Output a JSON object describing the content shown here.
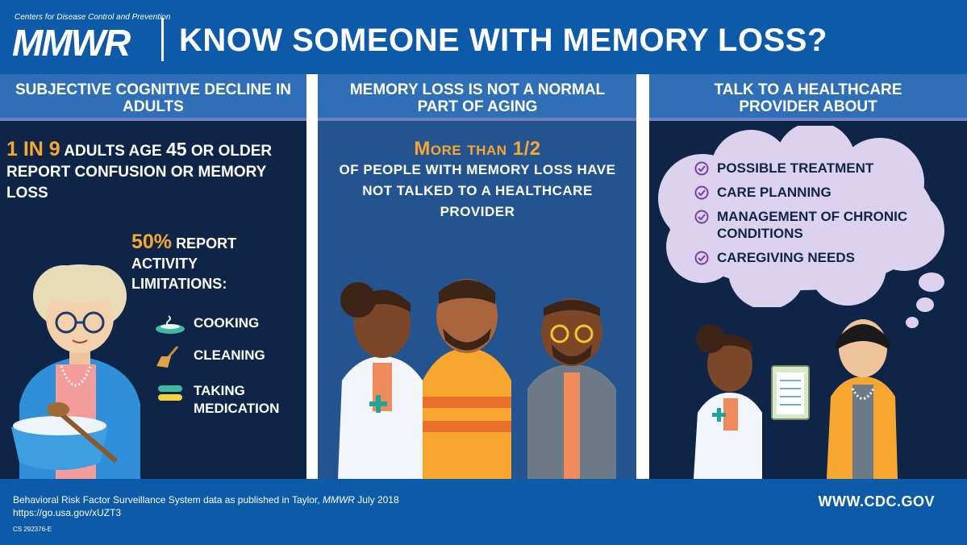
{
  "header": {
    "org": "Centers for Disease Control and Prevention",
    "logo": "MMWR",
    "title": "KNOW SOMEONE WITH MEMORY LOSS?"
  },
  "col1": {
    "heading": "SUBJECTIVE COGNITIVE DECLINE IN ADULTS",
    "stat_a": "1 in 9",
    "stat_a_mid": "adults age",
    "stat_a_num": "45",
    "stat_a_rest": "or older report confusion or memory loss",
    "pct": "50%",
    "pct_text": "report activity limitations:",
    "activities": [
      {
        "label": "Cooking",
        "icon": "pot-icon"
      },
      {
        "label": "Cleaning",
        "icon": "broom-icon"
      },
      {
        "label": "Taking medication",
        "icon": "pill-icon"
      }
    ]
  },
  "col2": {
    "heading": "MEMORY LOSS IS NOT A NORMAL PART OF AGING",
    "stat_big": "More than 1/2",
    "stat_rest": "of people with memory loss have not talked to a healthcare provider"
  },
  "col3": {
    "heading": "TALK TO A HEALTHCARE PROVIDER ABOUT",
    "topics": [
      "Possible treatment",
      "Care planning",
      "Management of chronic conditions",
      "Caregiving needs"
    ]
  },
  "footer": {
    "source_a": "Behavioral Risk Factor Surveillance System data as published in Taylor, ",
    "source_mmwr": "MMWR",
    "source_b": " July 2018",
    "link": "https://go.usa.gov/xUZT3",
    "code": "CS 292376-E",
    "url": "WWW.CDC.GOV"
  },
  "colors": {
    "header": "#0d5aa8",
    "dark": "#0e2547",
    "mid": "#24548f",
    "accent": "#f7a630",
    "cloud": "#dcd2ee"
  }
}
